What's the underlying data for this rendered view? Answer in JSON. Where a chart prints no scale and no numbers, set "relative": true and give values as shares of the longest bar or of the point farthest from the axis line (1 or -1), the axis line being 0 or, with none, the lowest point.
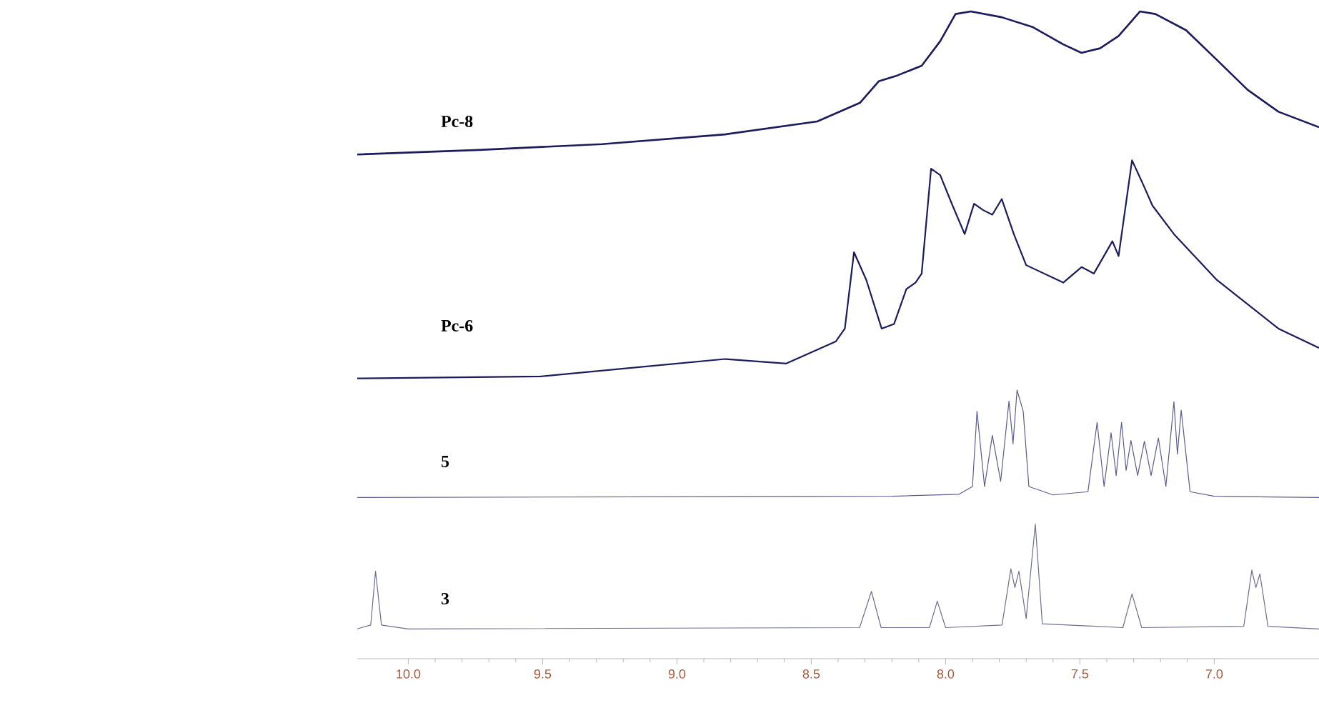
{
  "chart_data": {
    "type": "line",
    "relative": true,
    "xlim": [
      10.19,
      6.61
    ],
    "tick_labels": "x",
    "xticks": [
      {
        "value": 10,
        "label": "10.0"
      },
      9.5,
      {
        "value": 9,
        "label": "9.0"
      },
      8.5,
      {
        "value": 8,
        "label": "8.0"
      },
      7.5,
      {
        "value": 7,
        "label": "7.0"
      }
    ],
    "series": [
      {
        "name": "Pc-8",
        "color": "#1c1c5c",
        "x": [
          10.19,
          9.737,
          9.279,
          8.821,
          8.478,
          8.318,
          8.249,
          8.18,
          8.089,
          8.02,
          7.963,
          7.906,
          7.791,
          7.677,
          7.562,
          7.494,
          7.425,
          7.356,
          7.276,
          7.219,
          7.105,
          6.99,
          6.876,
          6.761,
          6.61
        ],
        "values": [
          0.779,
          0.786,
          0.795,
          0.81,
          0.83,
          0.859,
          0.892,
          0.901,
          0.916,
          0.954,
          0.996,
          1.0,
          0.991,
          0.976,
          0.949,
          0.936,
          0.943,
          0.962,
          1.0,
          0.996,
          0.971,
          0.925,
          0.879,
          0.845,
          0.821
        ]
      },
      {
        "name": "Pc-6",
        "color": "#1c1c5c",
        "x": [
          10.19,
          9.508,
          8.821,
          8.593,
          8.409,
          8.375,
          8.341,
          8.295,
          8.238,
          8.192,
          8.146,
          8.112,
          8.089,
          8.054,
          8.02,
          7.974,
          7.929,
          7.894,
          7.86,
          7.826,
          7.791,
          7.746,
          7.7,
          7.562,
          7.494,
          7.448,
          7.379,
          7.356,
          7.306,
          7.265,
          7.23,
          7.15,
          6.99,
          6.761,
          6.61
        ],
        "values": [
          0.433,
          0.436,
          0.463,
          0.456,
          0.49,
          0.51,
          0.628,
          0.585,
          0.51,
          0.517,
          0.571,
          0.581,
          0.595,
          0.757,
          0.747,
          0.7,
          0.656,
          0.703,
          0.693,
          0.686,
          0.71,
          0.656,
          0.608,
          0.581,
          0.605,
          0.595,
          0.645,
          0.622,
          0.77,
          0.733,
          0.7,
          0.656,
          0.585,
          0.51,
          0.48
        ]
      },
      {
        "name": "5",
        "color": "#5c5c8c",
        "x": [
          10.19,
          8.2,
          7.95,
          7.9,
          7.883,
          7.855,
          7.826,
          7.795,
          7.764,
          7.749,
          7.734,
          7.711,
          7.69,
          7.6,
          7.47,
          7.436,
          7.41,
          7.384,
          7.365,
          7.345,
          7.328,
          7.31,
          7.285,
          7.26,
          7.235,
          7.208,
          7.18,
          7.15,
          7.137,
          7.123,
          7.09,
          7.0,
          6.61
        ],
        "values": [
          0.249,
          0.251,
          0.254,
          0.266,
          0.382,
          0.266,
          0.345,
          0.274,
          0.398,
          0.332,
          0.415,
          0.382,
          0.266,
          0.253,
          0.258,
          0.365,
          0.266,
          0.349,
          0.283,
          0.365,
          0.291,
          0.337,
          0.283,
          0.336,
          0.283,
          0.341,
          0.266,
          0.397,
          0.316,
          0.384,
          0.258,
          0.251,
          0.249
        ]
      },
      {
        "name": "3",
        "color": "#6e6e90",
        "x": [
          10.19,
          10.14,
          10.122,
          10.1,
          10.0,
          8.32,
          8.276,
          8.24,
          8.06,
          8.031,
          8.0,
          7.79,
          7.757,
          7.742,
          7.727,
          7.7,
          7.666,
          7.64,
          7.34,
          7.306,
          7.27,
          6.89,
          6.86,
          6.845,
          6.83,
          6.8,
          6.61
        ],
        "values": [
          0.046,
          0.052,
          0.135,
          0.052,
          0.046,
          0.048,
          0.104,
          0.048,
          0.048,
          0.089,
          0.048,
          0.052,
          0.139,
          0.11,
          0.135,
          0.062,
          0.208,
          0.054,
          0.048,
          0.1,
          0.048,
          0.05,
          0.137,
          0.11,
          0.131,
          0.05,
          0.046
        ]
      }
    ]
  }
}
